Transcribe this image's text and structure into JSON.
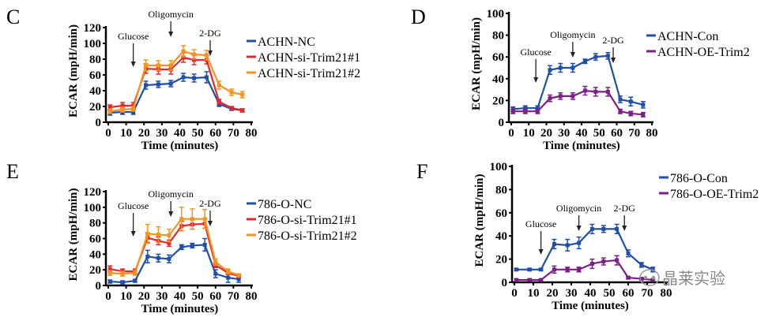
{
  "chart_data": [
    {
      "panel": "C",
      "type": "line",
      "xlabel": "Time (minutes)",
      "ylabel": "ECAR (mpH/min)",
      "xlim": [
        0,
        80
      ],
      "ylim": [
        0,
        120
      ],
      "xticks": [
        0,
        10,
        20,
        30,
        40,
        50,
        60,
        70,
        80
      ],
      "yticks": [
        0,
        20,
        40,
        60,
        80,
        100,
        120
      ],
      "annotations": [
        {
          "text": "Glucose",
          "x": 14
        },
        {
          "text": "Oligomycin",
          "x": 35
        },
        {
          "text": "2-DG",
          "x": 57
        }
      ],
      "legend": "right",
      "x": [
        1,
        8,
        14,
        21,
        28,
        35,
        42,
        48,
        55,
        62,
        69,
        75
      ],
      "series": [
        {
          "name": "ACHN-NC",
          "color": "#1f4fa8",
          "values": [
            12,
            13,
            13,
            47,
            48,
            49,
            57,
            56,
            57,
            23,
            17,
            15
          ],
          "err": [
            3,
            3,
            3,
            5,
            4,
            4,
            5,
            5,
            7,
            3,
            2,
            2
          ]
        },
        {
          "name": "ACHN-si-Trim21#1",
          "color": "#e8262b",
          "values": [
            19,
            21,
            21,
            68,
            67,
            67,
            82,
            79,
            79,
            26,
            18,
            15
          ],
          "err": [
            3,
            4,
            4,
            6,
            6,
            6,
            6,
            6,
            5,
            3,
            2,
            2
          ]
        },
        {
          "name": "ACHN-si-Trim21#2",
          "color": "#f7921e",
          "values": [
            14,
            16,
            17,
            72,
            72,
            72,
            90,
            86,
            85,
            47,
            38,
            35
          ],
          "err": [
            3,
            3,
            3,
            7,
            6,
            6,
            7,
            6,
            6,
            5,
            4,
            4
          ]
        }
      ]
    },
    {
      "panel": "D",
      "type": "line",
      "xlabel": "Time (minutes)",
      "ylabel": "ECAR (mpH/min)",
      "xlim": [
        0,
        80
      ],
      "ylim": [
        0,
        100
      ],
      "xticks": [
        0,
        10,
        20,
        30,
        40,
        50,
        60,
        70,
        80
      ],
      "yticks": [
        0,
        20,
        40,
        60,
        80,
        100
      ],
      "annotations": [
        {
          "text": "Glucose",
          "x": 14
        },
        {
          "text": "Oligomycin",
          "x": 35
        },
        {
          "text": "2-DG",
          "x": 58
        }
      ],
      "legend": "right",
      "x": [
        1,
        8,
        15,
        22,
        28,
        35,
        42,
        48,
        55,
        62,
        68,
        75
      ],
      "series": [
        {
          "name": "ACHN-Con",
          "color": "#1f4fa8",
          "values": [
            12,
            13,
            13,
            48,
            50,
            50,
            56,
            60,
            61,
            21,
            19,
            16
          ],
          "err": [
            2,
            2,
            2,
            4,
            4,
            4,
            2,
            3,
            3,
            3,
            4,
            3
          ]
        },
        {
          "name": "ACHN-OE-Trim2",
          "color": "#7b1f86",
          "values": [
            10,
            10,
            10,
            22,
            24,
            24,
            29,
            28,
            28,
            10,
            8,
            7
          ],
          "err": [
            2,
            2,
            2,
            3,
            3,
            3,
            4,
            4,
            4,
            2,
            2,
            2
          ]
        }
      ]
    },
    {
      "panel": "E",
      "type": "line",
      "xlabel": "Time (minutes)",
      "ylabel": "ECAR (mpH/min)",
      "xlim": [
        0,
        80
      ],
      "ylim": [
        0,
        120
      ],
      "xticks": [
        0,
        10,
        20,
        30,
        40,
        50,
        60,
        70,
        80
      ],
      "yticks": [
        0,
        20,
        40,
        60,
        80,
        100,
        120
      ],
      "annotations": [
        {
          "text": "Glucose",
          "x": 14
        },
        {
          "text": "Oligomycin",
          "x": 35
        },
        {
          "text": "2-DG",
          "x": 57
        }
      ],
      "legend": "right",
      "x": [
        1,
        8,
        15,
        22,
        28,
        34,
        41,
        47,
        54,
        60,
        67,
        73
      ],
      "series": [
        {
          "name": "786-O-NC",
          "color": "#1f4fa8",
          "values": [
            5,
            4,
            6,
            37,
            35,
            34,
            49,
            51,
            52,
            15,
            10,
            8
          ],
          "err": [
            2,
            2,
            2,
            8,
            5,
            5,
            3,
            3,
            8,
            5,
            6,
            4
          ]
        },
        {
          "name": "786-O-si-Trim21#1",
          "color": "#e8262b",
          "values": [
            21,
            18,
            18,
            61,
            57,
            54,
            76,
            78,
            79,
            26,
            16,
            12
          ],
          "err": [
            4,
            3,
            3,
            6,
            5,
            4,
            6,
            6,
            6,
            3,
            2,
            2
          ]
        },
        {
          "name": "786-O-si-Trim21#2",
          "color": "#f7921e",
          "values": [
            16,
            15,
            16,
            66,
            65,
            64,
            85,
            85,
            85,
            30,
            18,
            13
          ],
          "err": [
            3,
            3,
            3,
            12,
            10,
            8,
            15,
            13,
            12,
            4,
            3,
            2
          ]
        }
      ]
    },
    {
      "panel": "F",
      "type": "line",
      "xlabel": "Time (minutes)",
      "ylabel": "ECAR (mpH/min)",
      "xlim": [
        0,
        80
      ],
      "ylim": [
        0,
        100
      ],
      "xticks": [
        0,
        10,
        20,
        30,
        40,
        50,
        60,
        70,
        80
      ],
      "yticks": [
        0,
        20,
        40,
        60,
        80,
        100
      ],
      "annotations": [
        {
          "text": "Glucose",
          "x": 14
        },
        {
          "text": "Oligomycin",
          "x": 34
        },
        {
          "text": "2-DG",
          "x": 58
        }
      ],
      "legend": "top-right",
      "x": [
        1,
        8,
        14,
        21,
        28,
        34,
        41,
        47,
        54,
        60,
        67,
        73
      ],
      "series": [
        {
          "name": "786-O-Con",
          "color": "#1f4fa8",
          "values": [
            11,
            11,
            11,
            33,
            32,
            34,
            46,
            46,
            46,
            25,
            15,
            11
          ],
          "err": [
            1,
            1,
            1,
            4,
            5,
            5,
            4,
            3,
            4,
            3,
            2,
            2
          ]
        },
        {
          "name": "786-O-OE-Trim2",
          "color": "#7b1f86",
          "values": [
            2,
            2,
            2,
            11,
            11,
            11,
            16,
            18,
            19,
            4,
            3,
            2
          ],
          "err": [
            1,
            1,
            1,
            3,
            2,
            2,
            4,
            3,
            4,
            1,
            1,
            1
          ]
        }
      ]
    }
  ],
  "watermark": {
    "text": "晶莱实验",
    "icon": "wechat-icon"
  }
}
